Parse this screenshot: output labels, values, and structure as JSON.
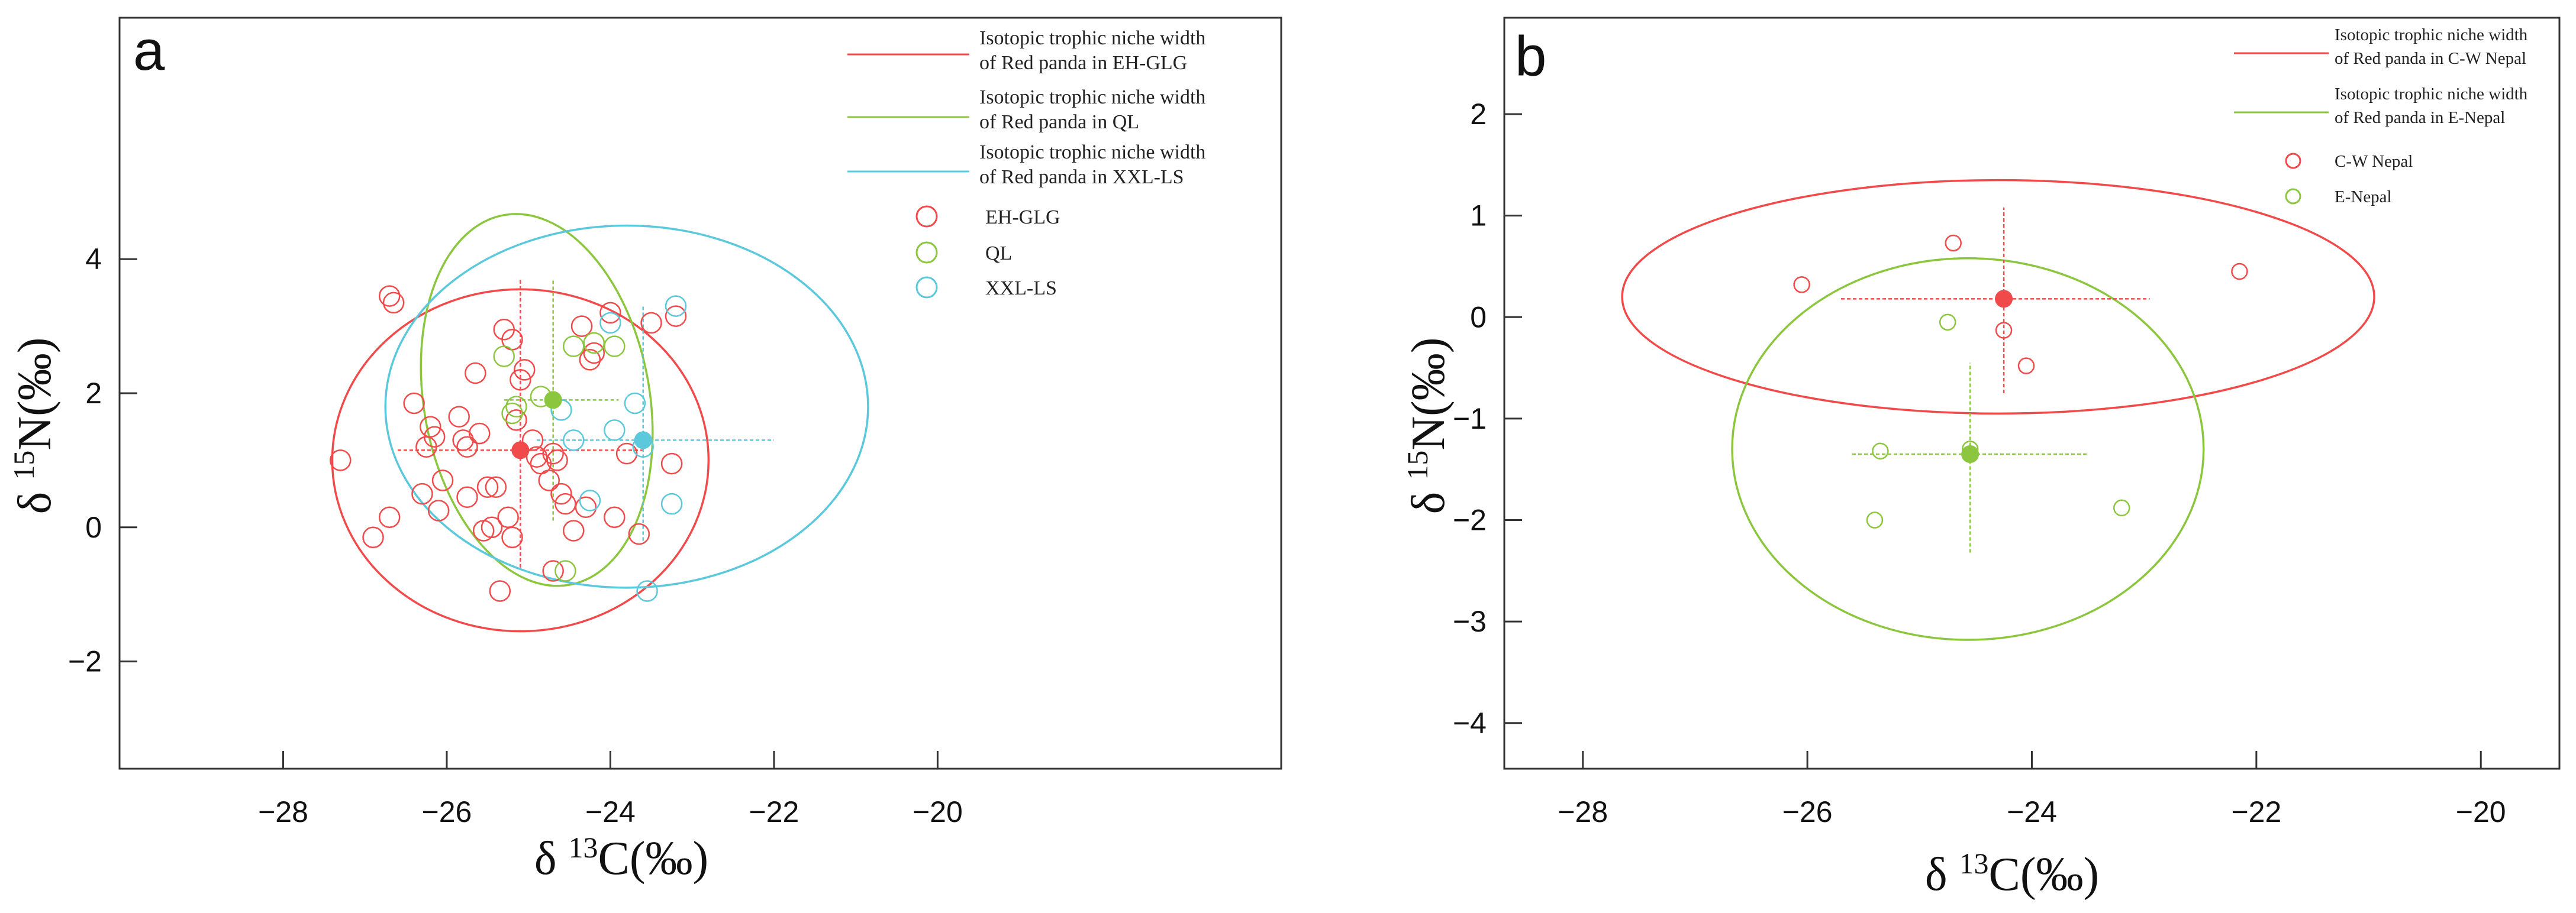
{
  "chart_data": [
    {
      "type": "scatter",
      "panel_label": "a",
      "xlabel": "δ13C(‰)",
      "ylabel": "δ15N(‰)",
      "xlim": [
        -30,
        -15.8
      ],
      "ylim": [
        -3.6,
        7.6
      ],
      "xticks": [
        -28,
        -26,
        -24,
        -22,
        -20
      ],
      "yticks": [
        -2,
        0,
        2,
        4
      ],
      "tick_labels_x": [
        "−28",
        "−26",
        "−24",
        "−22",
        "−20"
      ],
      "tick_labels_y": [
        "−2",
        "0",
        "2",
        "4"
      ],
      "legend": {
        "position": "top-right",
        "lines": [
          {
            "line1": "Isotopic trophic niche width",
            "line2": "of Red panda in EH-GLG",
            "color": "#f04a4a"
          },
          {
            "line1": "Isotopic trophic niche width",
            "line2": "of Red panda in  QL",
            "color": "#8cc63f"
          },
          {
            "line1": "Isotopic trophic niche width",
            "line2": "of Red panda in XXL-LS",
            "color": "#5bc8dc"
          }
        ],
        "markers": [
          {
            "label": "EH-GLG",
            "color": "#f04a4a"
          },
          {
            "label": "QL",
            "color": "#8cc63f"
          },
          {
            "label": "XXL-LS",
            "color": "#5bc8dc"
          }
        ]
      },
      "series": [
        {
          "name": "EH-GLG",
          "color": "#f04a4a",
          "mean": [
            -25.1,
            1.15
          ],
          "sd_x": [
            -26.6,
            -23.6
          ],
          "sd_y": [
            -0.6,
            3.7
          ],
          "ellipse": {
            "cx": -25.1,
            "cy": 1.0,
            "rx": 2.3,
            "ry": 2.55,
            "angle": 0
          },
          "points": [
            [
              -27.3,
              1.0
            ],
            [
              -26.9,
              -0.15
            ],
            [
              -26.7,
              3.45
            ],
            [
              -26.65,
              3.35
            ],
            [
              -26.7,
              0.15
            ],
            [
              -26.4,
              1.85
            ],
            [
              -26.3,
              0.5
            ],
            [
              -26.25,
              1.2
            ],
            [
              -26.2,
              1.5
            ],
            [
              -26.15,
              1.35
            ],
            [
              -26.1,
              0.25
            ],
            [
              -26.05,
              0.7
            ],
            [
              -25.85,
              1.65
            ],
            [
              -25.8,
              1.3
            ],
            [
              -25.75,
              1.2
            ],
            [
              -25.75,
              0.45
            ],
            [
              -25.65,
              2.3
            ],
            [
              -25.6,
              1.4
            ],
            [
              -25.55,
              -0.05
            ],
            [
              -25.5,
              0.6
            ],
            [
              -25.45,
              0.0
            ],
            [
              -25.4,
              0.6
            ],
            [
              -25.35,
              -0.95
            ],
            [
              -25.3,
              2.95
            ],
            [
              -25.25,
              0.15
            ],
            [
              -25.2,
              -0.15
            ],
            [
              -25.2,
              2.8
            ],
            [
              -25.15,
              1.6
            ],
            [
              -25.1,
              2.2
            ],
            [
              -25.05,
              2.35
            ],
            [
              -24.95,
              1.3
            ],
            [
              -24.9,
              1.05
            ],
            [
              -24.85,
              0.95
            ],
            [
              -24.75,
              0.7
            ],
            [
              -24.7,
              1.1
            ],
            [
              -24.65,
              1.0
            ],
            [
              -24.6,
              0.5
            ],
            [
              -24.55,
              0.35
            ],
            [
              -24.45,
              -0.05
            ],
            [
              -24.35,
              3.0
            ],
            [
              -24.3,
              0.3
            ],
            [
              -24.25,
              2.5
            ],
            [
              -24.2,
              2.6
            ],
            [
              -24.0,
              3.2
            ],
            [
              -23.95,
              0.15
            ],
            [
              -23.8,
              1.1
            ],
            [
              -23.65,
              -0.1
            ],
            [
              -23.5,
              3.05
            ],
            [
              -23.2,
              3.15
            ],
            [
              -23.25,
              0.95
            ],
            [
              -24.7,
              -0.65
            ]
          ]
        },
        {
          "name": "QL",
          "color": "#8cc63f",
          "mean": [
            -24.7,
            1.9
          ],
          "sd_x": [
            -25.3,
            -23.9
          ],
          "sd_y": [
            0.1,
            3.7
          ],
          "ellipse": {
            "cx": -24.9,
            "cy": 1.9,
            "rx": 1.38,
            "ry": 2.8,
            "angle": -10
          },
          "points": [
            [
              -25.3,
              2.55
            ],
            [
              -25.2,
              1.7
            ],
            [
              -25.15,
              1.8
            ],
            [
              -24.45,
              2.7
            ],
            [
              -24.2,
              2.75
            ],
            [
              -23.95,
              2.7
            ],
            [
              -24.55,
              -0.65
            ],
            [
              -24.85,
              1.95
            ]
          ]
        },
        {
          "name": "XXL-LS",
          "color": "#5bc8dc",
          "mean": [
            -23.6,
            1.3
          ],
          "sd_x": [
            -24.9,
            -22.0
          ],
          "sd_y": [
            -0.2,
            3.3
          ],
          "ellipse": {
            "cx": -23.8,
            "cy": 1.8,
            "rx": 2.95,
            "ry": 2.7,
            "angle": 0
          },
          "points": [
            [
              -24.6,
              1.75
            ],
            [
              -24.45,
              1.3
            ],
            [
              -24.25,
              0.4
            ],
            [
              -24.0,
              3.05
            ],
            [
              -23.95,
              1.45
            ],
            [
              -23.7,
              1.85
            ],
            [
              -23.6,
              1.2
            ],
            [
              -23.55,
              -0.95
            ],
            [
              -23.25,
              0.35
            ],
            [
              -23.2,
              3.3
            ]
          ]
        }
      ]
    },
    {
      "type": "scatter",
      "panel_label": "b",
      "xlabel": "δ13C(‰)",
      "ylabel": "δ15N(‰)",
      "xlim": [
        -28.7,
        -19.3
      ],
      "ylim": [
        -4.45,
        2.95
      ],
      "xticks": [
        -28,
        -26,
        -24,
        -22,
        -20
      ],
      "yticks": [
        -4,
        -3,
        -2,
        -1,
        0,
        1,
        2
      ],
      "tick_labels_x": [
        "−28",
        "−26",
        "−24",
        "−22",
        "−20"
      ],
      "tick_labels_y": [
        "−4",
        "−3",
        "−2",
        "−1",
        "0",
        "1",
        "2"
      ],
      "legend": {
        "position": "top-right",
        "lines": [
          {
            "line1": "Isotopic trophic niche width",
            "line2": "of  Red panda in C-W Nepal",
            "color": "#f04a4a"
          },
          {
            "line1": "Isotopic trophic niche width",
            "line2": "of  Red panda in E-Nepal",
            "color": "#8cc63f"
          }
        ],
        "markers": [
          {
            "label": "C-W Nepal",
            "color": "#f04a4a"
          },
          {
            "label": "E-Nepal",
            "color": "#8cc63f"
          }
        ]
      },
      "series": [
        {
          "name": "C-W Nepal",
          "color": "#f04a4a",
          "mean": [
            -24.25,
            0.18
          ],
          "sd_x": [
            -25.7,
            -22.95
          ],
          "sd_y": [
            -0.75,
            1.08
          ],
          "ellipse": {
            "cx": -24.3,
            "cy": 0.2,
            "rx": 3.35,
            "ry": 1.15,
            "angle": 0
          },
          "points": [
            [
              -26.05,
              0.32
            ],
            [
              -24.7,
              0.73
            ],
            [
              -24.25,
              -0.13
            ],
            [
              -24.05,
              -0.48
            ],
            [
              -22.15,
              0.45
            ]
          ]
        },
        {
          "name": "E-Nepal",
          "color": "#8cc63f",
          "mean": [
            -24.55,
            -1.35
          ],
          "sd_x": [
            -25.6,
            -23.5
          ],
          "sd_y": [
            -2.32,
            -0.45
          ],
          "ellipse": {
            "cx": -24.57,
            "cy": -1.3,
            "rx": 2.1,
            "ry": 1.88,
            "angle": 0
          },
          "points": [
            [
              -25.35,
              -1.32
            ],
            [
              -25.4,
              -2.0
            ],
            [
              -24.75,
              -0.05
            ],
            [
              -24.55,
              -1.3
            ],
            [
              -23.2,
              -1.88
            ]
          ]
        }
      ]
    }
  ]
}
